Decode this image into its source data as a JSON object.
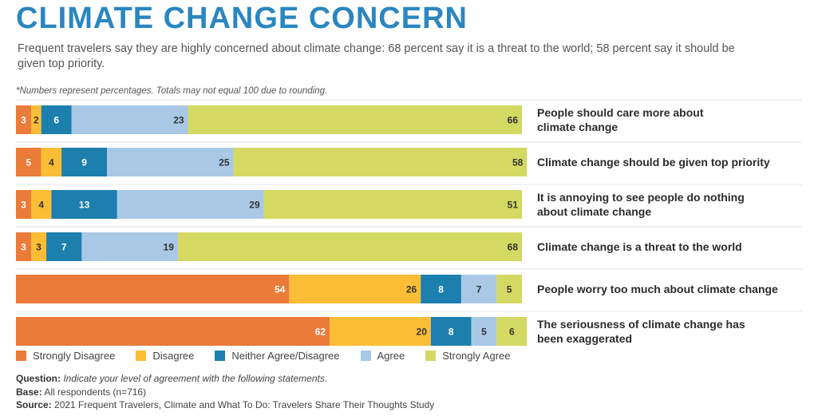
{
  "title": "CLIMATE CHANGE CONCERN",
  "subtitle": "Frequent travelers say they are highly concerned about climate change: 68 percent say it is a threat to the world; 58 percent say it should be given top priority.",
  "note": "*Numbers represent percentages. Totals may not equal 100 due to rounding.",
  "colors": {
    "strongly_disagree": "#ea7b39",
    "disagree": "#fbbd35",
    "neither": "#1c7fae",
    "agree": "#a9c8e6",
    "strongly_agree": "#d3d962"
  },
  "legend": [
    {
      "label": "Strongly Disagree",
      "color": "#ea7b39"
    },
    {
      "label": "Disagree",
      "color": "#fbbd35"
    },
    {
      "label": "Neither Agree/Disagree",
      "color": "#1c7fae"
    },
    {
      "label": "Agree",
      "color": "#a9c8e6"
    },
    {
      "label": "Strongly Agree",
      "color": "#d3d962"
    }
  ],
  "footer": {
    "question_label": "Question:",
    "question_text": "Indicate your level of agreement with the following statements.",
    "base_label": "Base:",
    "base_text": "All respondents (n=716)",
    "source_label": "Source:",
    "source_text": "2021 Frequent Travelers, Climate and What To Do: Travelers Share Their Thoughts Study"
  },
  "chart_data": {
    "type": "bar",
    "orientation": "horizontal",
    "stacked": true,
    "title": "CLIMATE CHANGE CONCERN",
    "xlabel": "",
    "ylabel": "",
    "xlim": [
      0,
      100
    ],
    "categories": [
      [
        "People should care more about",
        "climate change"
      ],
      [
        "Climate change should be given top priority"
      ],
      [
        "It is annoying to see people do nothing",
        "about climate change"
      ],
      [
        "Climate change is a threat to the world"
      ],
      [
        "People worry too much about climate change"
      ],
      [
        "The seriousness of climate change has",
        "been exaggerated"
      ]
    ],
    "series": [
      {
        "name": "Strongly Disagree",
        "color": "#ea7b39",
        "values": [
          3,
          5,
          3,
          3,
          54,
          62
        ]
      },
      {
        "name": "Disagree",
        "color": "#fbbd35",
        "values": [
          2,
          4,
          4,
          3,
          26,
          20
        ]
      },
      {
        "name": "Neither Agree/Disagree",
        "color": "#1c7fae",
        "values": [
          6,
          9,
          13,
          7,
          8,
          8
        ]
      },
      {
        "name": "Agree",
        "color": "#a9c8e6",
        "values": [
          23,
          25,
          29,
          19,
          7,
          5
        ]
      },
      {
        "name": "Strongly Agree",
        "color": "#d3d962",
        "values": [
          66,
          58,
          51,
          68,
          5,
          6
        ]
      }
    ]
  }
}
